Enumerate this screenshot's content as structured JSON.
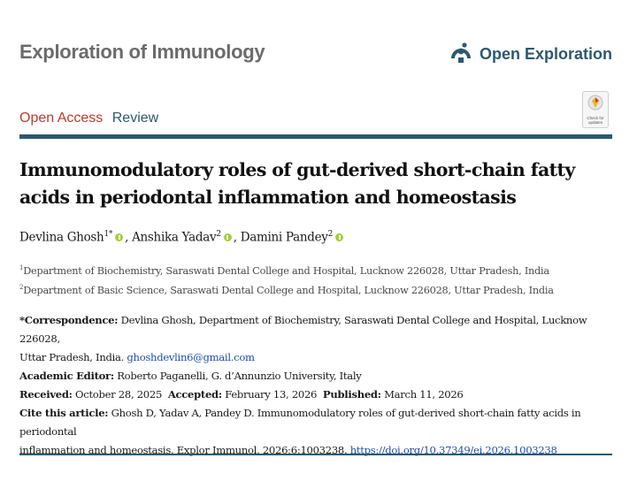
{
  "header": {
    "journal_title": "Exploration of Immunology",
    "publisher_name": "Open Exploration"
  },
  "article_tags": {
    "access": "Open Access",
    "type": "Review"
  },
  "check_badge": {
    "caption_line1": "Check for",
    "caption_line2": "updates"
  },
  "article": {
    "title": "Immunomodulatory roles of gut-derived short-chain fatty acids in periodontal inflammation and homeostasis",
    "authors": [
      {
        "name": "Devlina Ghosh",
        "sup": "1*"
      },
      {
        "name": "Anshika Yadav",
        "sup": "2"
      },
      {
        "name": "Damini Pandey",
        "sup": "2"
      }
    ],
    "affiliations": [
      {
        "sup": "1",
        "text": "Department of Biochemistry, Saraswati Dental College and Hospital, Lucknow 226028, Uttar Pradesh, India"
      },
      {
        "sup": "2",
        "text": "Department of Basic Science, Saraswati Dental College and Hospital, Lucknow 226028, Uttar Pradesh, India"
      }
    ],
    "correspondence": {
      "label": "*Correspondence:",
      "text_line1": "Devlina Ghosh, Department of Biochemistry, Saraswati Dental College and Hospital, Lucknow 226028,",
      "text_line2": "Uttar Pradesh, India.",
      "email": "ghoshdevlin6@gmail.com"
    },
    "academic_editor": {
      "label": "Academic Editor:",
      "value": "Roberto Paganelli, G. d’Annunzio University, Italy"
    },
    "dates": {
      "received_label": "Received:",
      "received": "October 28, 2025",
      "accepted_label": "Accepted:",
      "accepted": "February 13, 2026",
      "published_label": "Published:",
      "published": "March 11, 2026"
    },
    "citation": {
      "label": "Cite this article:",
      "text_line1": "Ghosh D, Yadav A, Pandey D. Immunomodulatory roles of gut-derived short-chain fatty acids in periodontal",
      "text_line2": "inflammation and homeostasis. Explor Immunol. 2026;6:1003238.",
      "doi": "https://doi.org/10.37349/ei.2026.1003238"
    }
  },
  "colors": {
    "brand_navy": "#2d5870",
    "open_access_red": "#c0392b",
    "orcid_green": "#a6ce39",
    "link_blue": "#1f4fa8"
  }
}
